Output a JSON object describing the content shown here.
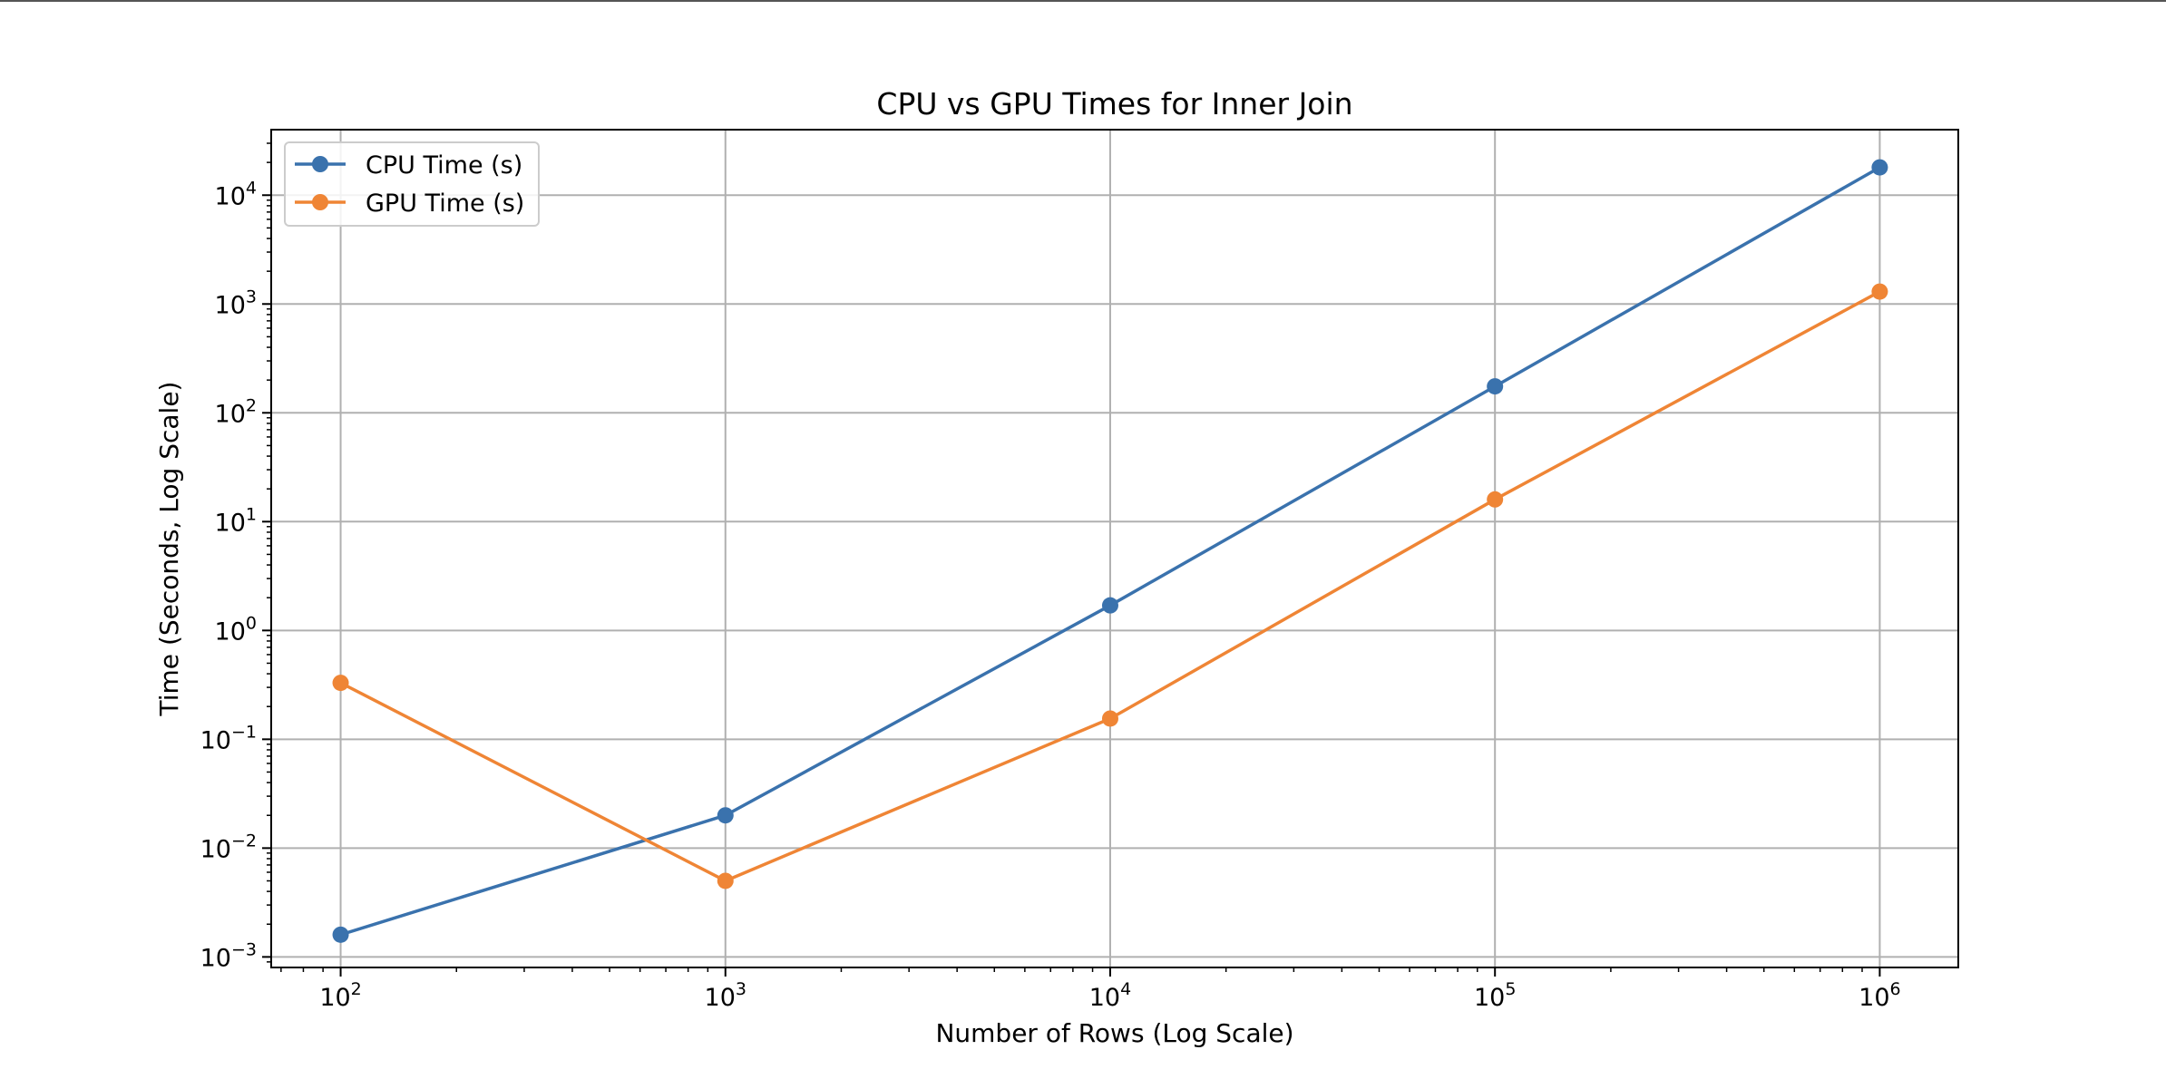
{
  "chart_data": {
    "type": "line",
    "title": "CPU vs GPU Times for Inner Join",
    "xlabel": "Number of Rows (Log Scale)",
    "ylabel": "Time (Seconds, Log Scale)",
    "xscale": "log",
    "yscale": "log",
    "xlim": [
      66,
      1600000
    ],
    "ylim": [
      0.0008,
      40000
    ],
    "grid": true,
    "legend_position": "top-left",
    "x": [
      100,
      1000,
      10000,
      100000,
      1000000
    ],
    "x_ticks": [
      {
        "value": 100,
        "base": "10",
        "exp": "2"
      },
      {
        "value": 1000,
        "base": "10",
        "exp": "3"
      },
      {
        "value": 10000,
        "base": "10",
        "exp": "4"
      },
      {
        "value": 100000,
        "base": "10",
        "exp": "5"
      },
      {
        "value": 1000000,
        "base": "10",
        "exp": "6"
      }
    ],
    "y_ticks": [
      {
        "value": 0.001,
        "base": "10",
        "exp": "−3"
      },
      {
        "value": 0.01,
        "base": "10",
        "exp": "−2"
      },
      {
        "value": 0.1,
        "base": "10",
        "exp": "−1"
      },
      {
        "value": 1,
        "base": "10",
        "exp": "0"
      },
      {
        "value": 10,
        "base": "10",
        "exp": "1"
      },
      {
        "value": 100,
        "base": "10",
        "exp": "2"
      },
      {
        "value": 1000,
        "base": "10",
        "exp": "3"
      },
      {
        "value": 10000,
        "base": "10",
        "exp": "4"
      }
    ],
    "series": [
      {
        "name": "CPU Time (s)",
        "color": "#3a72ad",
        "values": [
          0.0016,
          0.02,
          1.7,
          175,
          18000
        ]
      },
      {
        "name": "GPU Time (s)",
        "color": "#ef8535",
        "values": [
          0.33,
          0.005,
          0.155,
          16,
          1300
        ]
      }
    ]
  }
}
